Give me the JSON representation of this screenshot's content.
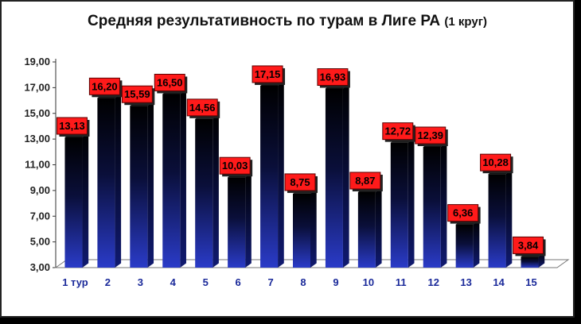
{
  "chart_data": {
    "type": "bar",
    "title": "Средняя результативность по турам в Лиге РА",
    "subtitle": "(1 круг)",
    "categories": [
      "1 тур",
      "2",
      "3",
      "4",
      "5",
      "6",
      "7",
      "8",
      "9",
      "10",
      "11",
      "12",
      "13",
      "14",
      "15"
    ],
    "values": [
      13.13,
      16.2,
      15.59,
      16.5,
      14.56,
      10.03,
      17.15,
      8.75,
      16.93,
      8.87,
      12.72,
      12.39,
      6.36,
      10.28,
      3.84
    ],
    "value_labels": [
      "13,13",
      "16,20",
      "15,59",
      "16,50",
      "14,56",
      "10,03",
      "17,15",
      "8,75",
      "16,93",
      "8,87",
      "12,72",
      "12,39",
      "6,36",
      "10,28",
      "3,84"
    ],
    "yticks": [
      "3,00",
      "5,00",
      "7,00",
      "9,00",
      "11,00",
      "13,00",
      "15,00",
      "17,00",
      "19,00"
    ],
    "ylim": [
      3,
      19
    ],
    "xlabel": "",
    "ylabel": "",
    "grid": false,
    "legend": "none",
    "colors": {
      "bar_top": "#000000",
      "bar_bottom": "#2a3bc8",
      "label_bg": "#ff1a1a",
      "category_text": "#1b2a9a"
    }
  }
}
